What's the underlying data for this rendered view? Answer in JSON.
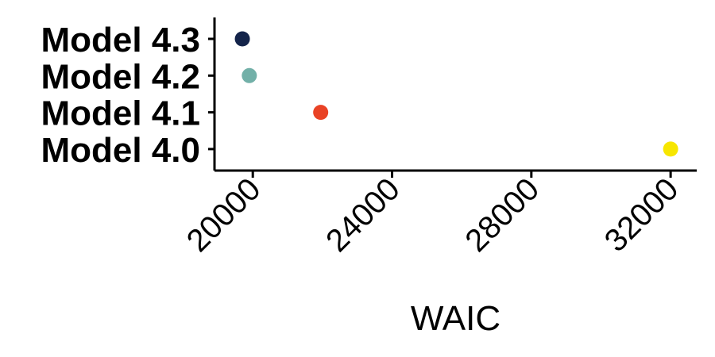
{
  "chart_data": {
    "type": "scatter",
    "xlabel": "WAIC",
    "ylabel": "",
    "title": "",
    "xlim": [
      18900,
      32750
    ],
    "xticks": [
      20000,
      24000,
      28000,
      32000
    ],
    "xtick_labels": [
      "20000",
      "24000",
      "28000",
      "32000"
    ],
    "categories": [
      "Model 4.3",
      "Model 4.2",
      "Model 4.1",
      "Model 4.0"
    ],
    "points": [
      {
        "label": "Model 4.3",
        "x": 19700,
        "color": "#14244a"
      },
      {
        "label": "Model 4.2",
        "x": 19900,
        "color": "#72b0a8"
      },
      {
        "label": "Model 4.1",
        "x": 21950,
        "color": "#e94225"
      },
      {
        "label": "Model 4.0",
        "x": 32000,
        "color": "#f7e600"
      }
    ],
    "grid": false,
    "legend": "none"
  }
}
